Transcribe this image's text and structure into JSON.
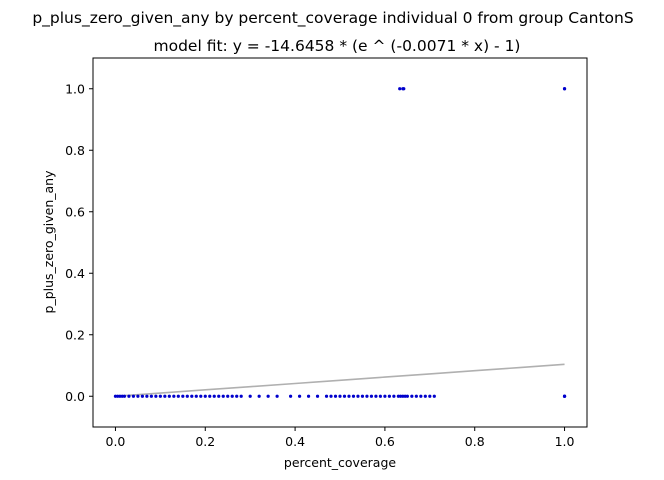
{
  "chart_data": {
    "type": "scatter",
    "title": "p_plus_zero_given_any by percent_coverage individual 0 from group CantonS",
    "subtitle": "model fit: y = -14.6458 * (e ^ (-0.0071 * x) - 1)",
    "xlabel": "percent_coverage",
    "ylabel": "p_plus_zero_given_any",
    "xlim": [
      -0.05,
      1.05
    ],
    "ylim": [
      -0.1,
      1.1
    ],
    "x_ticks": [
      "0.0",
      "0.2",
      "0.4",
      "0.6",
      "0.8",
      "1.0"
    ],
    "y_ticks": [
      "0.0",
      "0.2",
      "0.4",
      "0.6",
      "0.8",
      "1.0"
    ],
    "grid": false,
    "colors": {
      "points": "#0000cc",
      "fit_line": "#b0b0b0"
    },
    "series": [
      {
        "type": "scatter",
        "points": [
          {
            "x": 0.0,
            "y": 0
          },
          {
            "x": 0.005,
            "y": 0
          },
          {
            "x": 0.01,
            "y": 0
          },
          {
            "x": 0.015,
            "y": 0
          },
          {
            "x": 0.02,
            "y": 0
          },
          {
            "x": 0.03,
            "y": 0
          },
          {
            "x": 0.04,
            "y": 0
          },
          {
            "x": 0.05,
            "y": 0
          },
          {
            "x": 0.06,
            "y": 0
          },
          {
            "x": 0.07,
            "y": 0
          },
          {
            "x": 0.08,
            "y": 0
          },
          {
            "x": 0.09,
            "y": 0
          },
          {
            "x": 0.1,
            "y": 0
          },
          {
            "x": 0.11,
            "y": 0
          },
          {
            "x": 0.12,
            "y": 0
          },
          {
            "x": 0.13,
            "y": 0
          },
          {
            "x": 0.14,
            "y": 0
          },
          {
            "x": 0.15,
            "y": 0
          },
          {
            "x": 0.16,
            "y": 0
          },
          {
            "x": 0.17,
            "y": 0
          },
          {
            "x": 0.18,
            "y": 0
          },
          {
            "x": 0.19,
            "y": 0
          },
          {
            "x": 0.2,
            "y": 0
          },
          {
            "x": 0.21,
            "y": 0
          },
          {
            "x": 0.22,
            "y": 0
          },
          {
            "x": 0.23,
            "y": 0
          },
          {
            "x": 0.24,
            "y": 0
          },
          {
            "x": 0.25,
            "y": 0
          },
          {
            "x": 0.26,
            "y": 0
          },
          {
            "x": 0.27,
            "y": 0
          },
          {
            "x": 0.28,
            "y": 0
          },
          {
            "x": 0.3,
            "y": 0
          },
          {
            "x": 0.32,
            "y": 0
          },
          {
            "x": 0.34,
            "y": 0
          },
          {
            "x": 0.36,
            "y": 0
          },
          {
            "x": 0.39,
            "y": 0
          },
          {
            "x": 0.41,
            "y": 0
          },
          {
            "x": 0.43,
            "y": 0
          },
          {
            "x": 0.45,
            "y": 0
          },
          {
            "x": 0.47,
            "y": 0
          },
          {
            "x": 0.48,
            "y": 0
          },
          {
            "x": 0.49,
            "y": 0
          },
          {
            "x": 0.5,
            "y": 0
          },
          {
            "x": 0.51,
            "y": 0
          },
          {
            "x": 0.52,
            "y": 0
          },
          {
            "x": 0.53,
            "y": 0
          },
          {
            "x": 0.54,
            "y": 0
          },
          {
            "x": 0.55,
            "y": 0
          },
          {
            "x": 0.56,
            "y": 0
          },
          {
            "x": 0.57,
            "y": 0
          },
          {
            "x": 0.58,
            "y": 0
          },
          {
            "x": 0.59,
            "y": 0
          },
          {
            "x": 0.6,
            "y": 0
          },
          {
            "x": 0.61,
            "y": 0
          },
          {
            "x": 0.62,
            "y": 0
          },
          {
            "x": 0.63,
            "y": 0
          },
          {
            "x": 0.635,
            "y": 0
          },
          {
            "x": 0.64,
            "y": 0
          },
          {
            "x": 0.645,
            "y": 0
          },
          {
            "x": 0.65,
            "y": 0
          },
          {
            "x": 0.66,
            "y": 0
          },
          {
            "x": 0.67,
            "y": 0
          },
          {
            "x": 0.68,
            "y": 0
          },
          {
            "x": 0.69,
            "y": 0
          },
          {
            "x": 0.7,
            "y": 0
          },
          {
            "x": 0.71,
            "y": 0
          },
          {
            "x": 1.0,
            "y": 0
          },
          {
            "x": 1.0,
            "y": 0
          },
          {
            "x": 1.0,
            "y": 0
          },
          {
            "x": 0.633,
            "y": 1
          },
          {
            "x": 0.64,
            "y": 1
          },
          {
            "x": 0.642,
            "y": 1
          },
          {
            "x": 1.0,
            "y": 1
          },
          {
            "x": 1.0,
            "y": 1
          }
        ]
      },
      {
        "type": "line",
        "x": [
          0.0,
          0.1,
          0.2,
          0.3,
          0.4,
          0.5,
          0.6,
          0.7,
          0.8,
          0.9,
          1.0
        ],
        "y": [
          0.0,
          0.0104,
          0.0208,
          0.0312,
          0.0415,
          0.0519,
          0.0623,
          0.0726,
          0.083,
          0.0933,
          0.1037
        ]
      }
    ]
  }
}
